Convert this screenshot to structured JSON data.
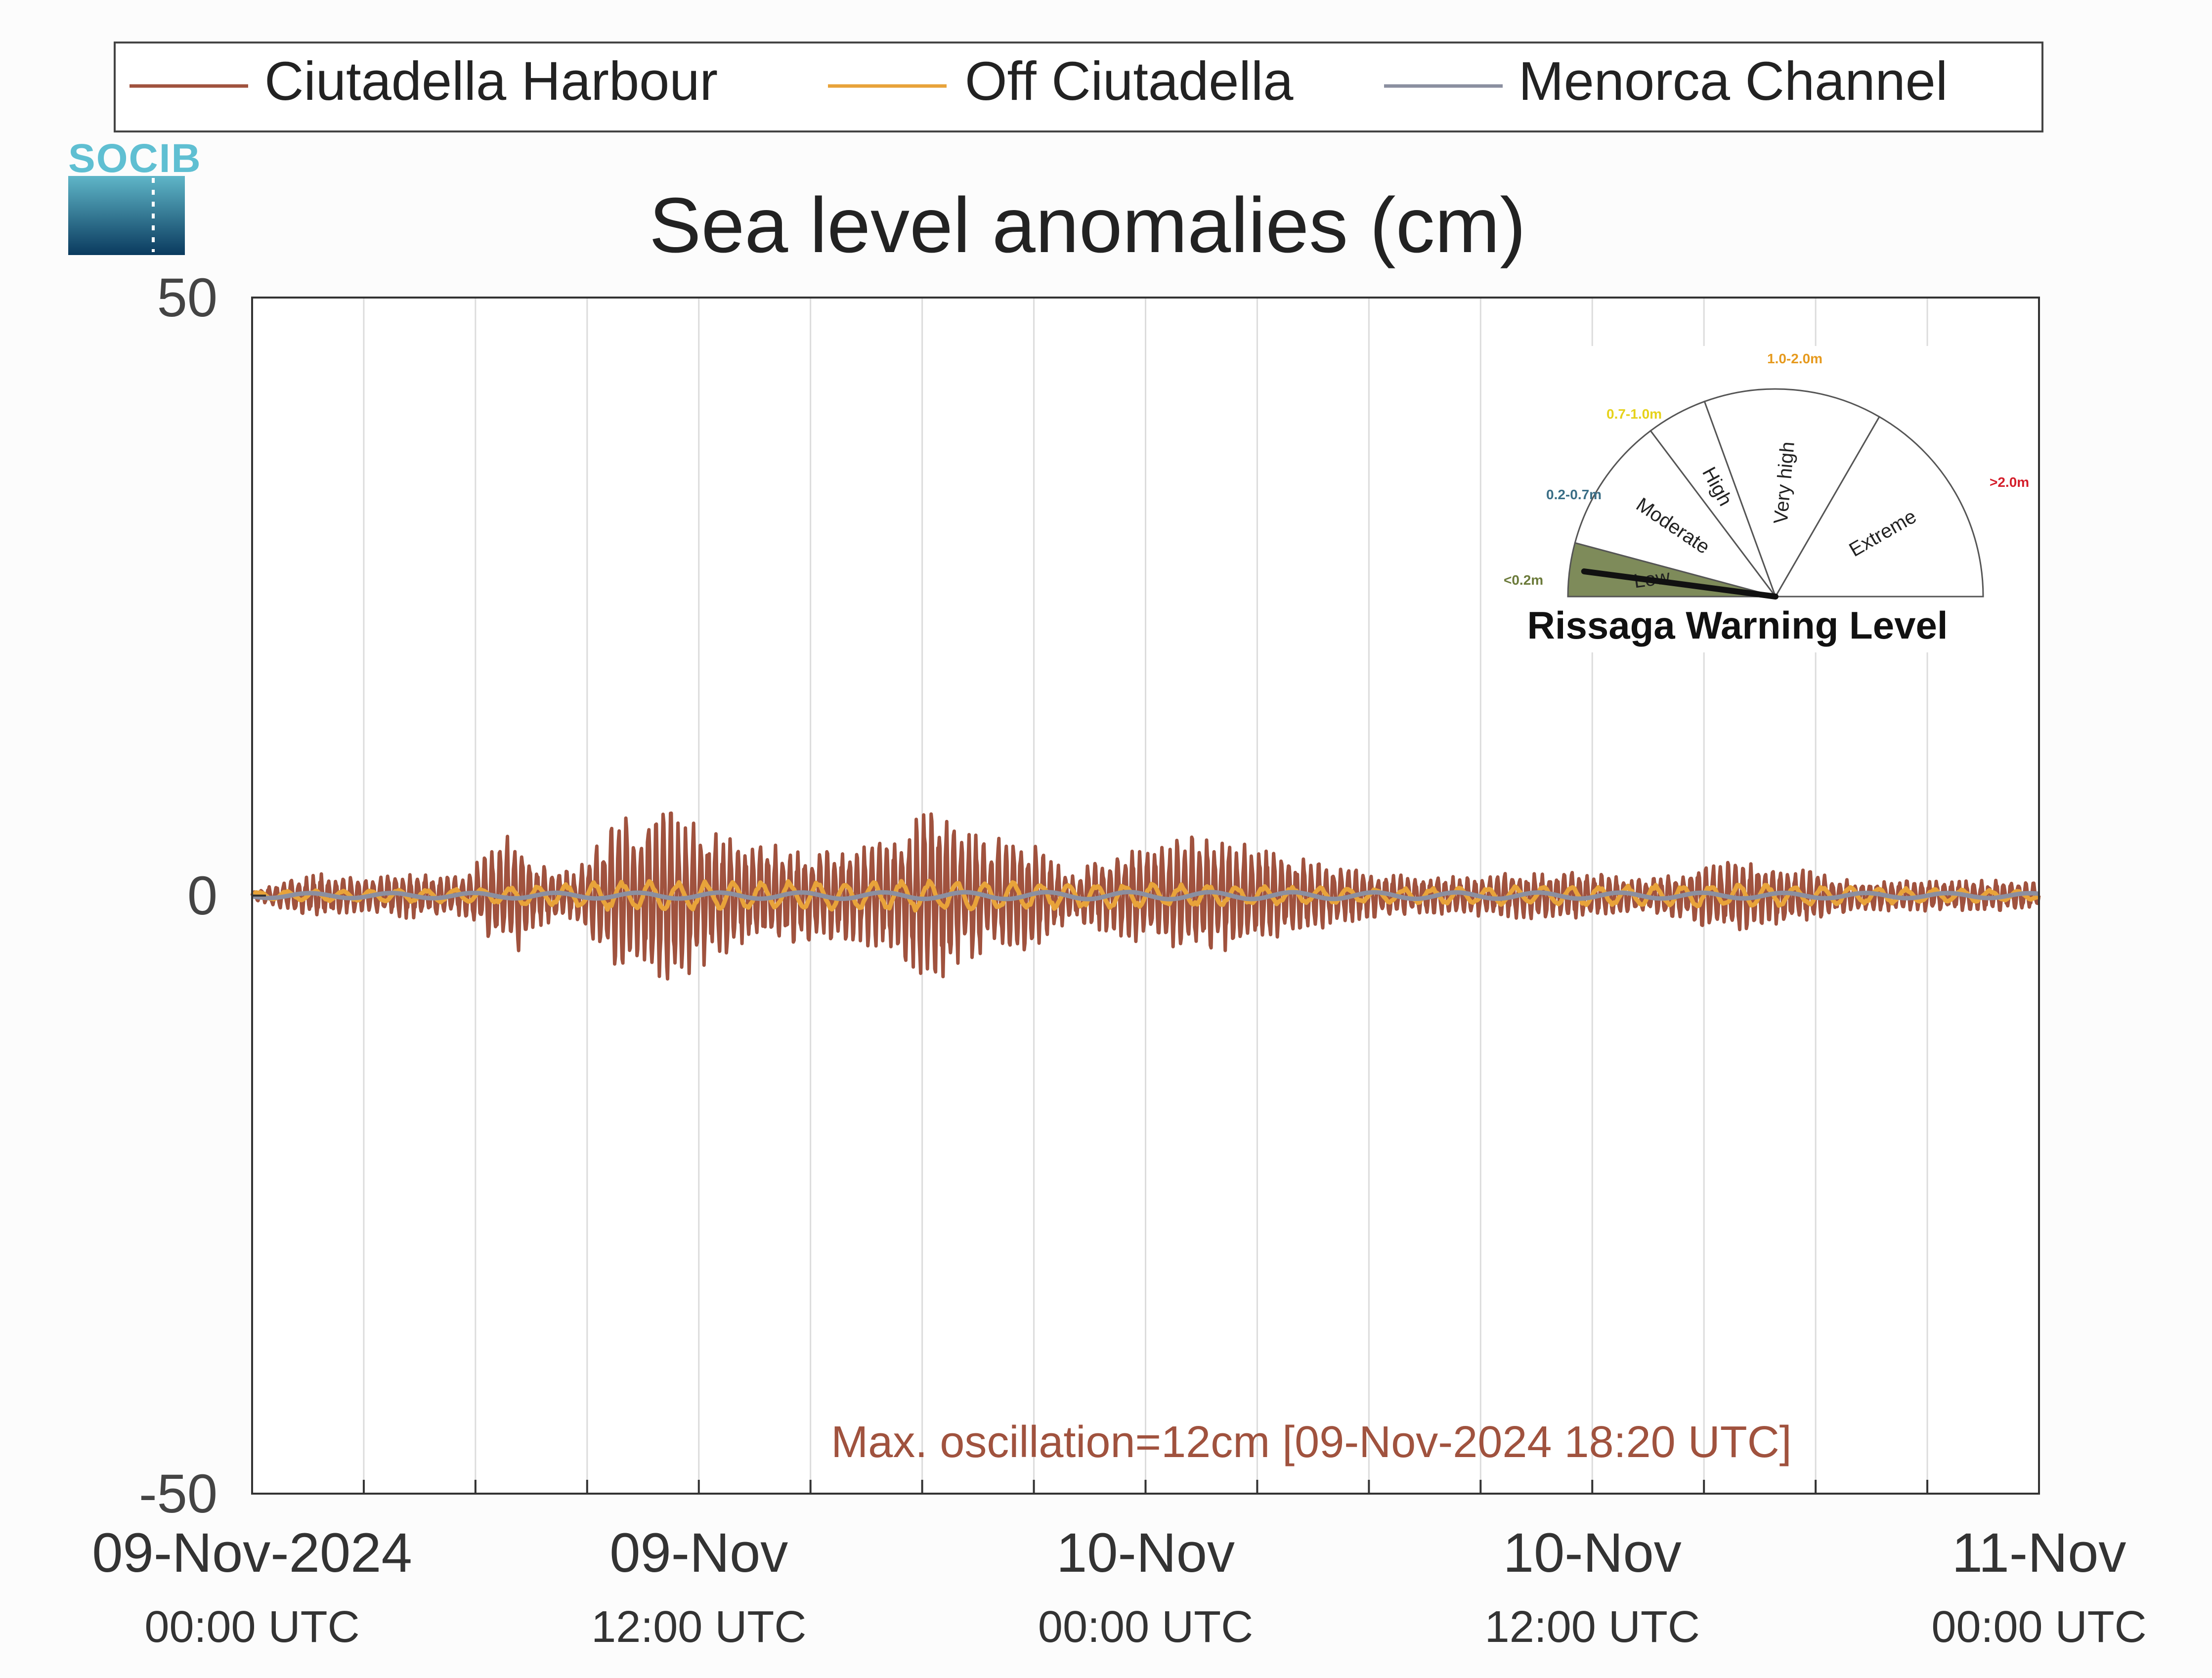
{
  "logo_text": "SOCIB",
  "chart_data": {
    "type": "line",
    "title": "Sea level anomalies (cm)",
    "xlabel": "",
    "ylabel": "",
    "ylim": [
      -50,
      50
    ],
    "yticks": [
      -50,
      0,
      50
    ],
    "x_range": [
      "2024-11-09 00:00",
      "2024-11-11 00:00"
    ],
    "x_minor_grid_hours": 3,
    "grid": "vertical",
    "legend": {
      "position": "top",
      "entries": [
        "Ciutadella Harbour",
        "Off Ciutadella",
        "Menorca Channel"
      ]
    },
    "xticks": [
      {
        "x": "2024-11-09 00:00",
        "line1": "09-Nov-2024",
        "line2": "00:00 UTC"
      },
      {
        "x": "2024-11-09 12:00",
        "line1": "09-Nov",
        "line2": "12:00 UTC"
      },
      {
        "x": "2024-11-10 00:00",
        "line1": "10-Nov",
        "line2": "00:00 UTC"
      },
      {
        "x": "2024-11-10 12:00",
        "line1": "10-Nov",
        "line2": "12:00 UTC"
      },
      {
        "x": "2024-11-11 00:00",
        "line1": "11-Nov",
        "line2": "00:00 UTC"
      }
    ],
    "series": [
      {
        "name": "Ciutadella Harbour",
        "color": "#a0523e",
        "style": "high-frequency oscillation; envelope = amplitude (cm) at given time",
        "envelope": [
          {
            "t": "2024-11-09 00:00",
            "amp": 0.3
          },
          {
            "t": "2024-11-09 01:00",
            "amp": 1.0
          },
          {
            "t": "2024-11-09 02:00",
            "amp": 1.5
          },
          {
            "t": "2024-11-09 03:00",
            "amp": 1.0
          },
          {
            "t": "2024-11-09 04:00",
            "amp": 1.5
          },
          {
            "t": "2024-11-09 05:30",
            "amp": 1.3
          },
          {
            "t": "2024-11-09 06:30",
            "amp": 3.0
          },
          {
            "t": "2024-11-09 07:00",
            "amp": 4.5
          },
          {
            "t": "2024-11-09 07:40",
            "amp": 2.0
          },
          {
            "t": "2024-11-09 08:40",
            "amp": 1.5
          },
          {
            "t": "2024-11-09 09:40",
            "amp": 4.5
          },
          {
            "t": "2024-11-09 10:40",
            "amp": 6.0
          },
          {
            "t": "2024-11-09 12:00",
            "amp": 5.0
          },
          {
            "t": "2024-11-09 13:00",
            "amp": 3.5
          },
          {
            "t": "2024-11-09 14:00",
            "amp": 3.3
          },
          {
            "t": "2024-11-09 15:00",
            "amp": 3.0
          },
          {
            "t": "2024-11-09 16:00",
            "amp": 3.0
          },
          {
            "t": "2024-11-09 17:00",
            "amp": 3.5
          },
          {
            "t": "2024-11-09 18:20",
            "amp": 6.0
          },
          {
            "t": "2024-11-09 19:30",
            "amp": 4.0
          },
          {
            "t": "2024-11-09 21:00",
            "amp": 3.5
          },
          {
            "t": "2024-11-09 22:00",
            "amp": 1.5
          },
          {
            "t": "2024-11-09 23:00",
            "amp": 2.5
          },
          {
            "t": "2024-11-10 01:00",
            "amp": 4.0
          },
          {
            "t": "2024-11-10 02:30",
            "amp": 3.5
          },
          {
            "t": "2024-11-10 04:00",
            "amp": 2.5
          },
          {
            "t": "2024-11-10 06:00",
            "amp": 1.5
          },
          {
            "t": "2024-11-10 08:00",
            "amp": 1.2
          },
          {
            "t": "2024-11-10 10:00",
            "amp": 1.5
          },
          {
            "t": "2024-11-10 12:00",
            "amp": 1.5
          },
          {
            "t": "2024-11-10 13:30",
            "amp": 1.0
          },
          {
            "t": "2024-11-10 15:00",
            "amp": 2.0
          },
          {
            "t": "2024-11-10 16:00",
            "amp": 2.3
          },
          {
            "t": "2024-11-10 17:30",
            "amp": 1.8
          },
          {
            "t": "2024-11-10 19:00",
            "amp": 1.0
          },
          {
            "t": "2024-11-10 21:00",
            "amp": 1.0
          },
          {
            "t": "2024-11-10 23:00",
            "amp": 1.0
          },
          {
            "t": "2024-11-11 00:00",
            "amp": 1.0
          }
        ]
      },
      {
        "name": "Off Ciutadella",
        "color": "#e8a33a",
        "style": "oscillation",
        "envelope": [
          {
            "t": "2024-11-09 00:00",
            "amp": 0.3
          },
          {
            "t": "2024-11-09 06:00",
            "amp": 0.5
          },
          {
            "t": "2024-11-09 10:00",
            "amp": 1.0
          },
          {
            "t": "2024-11-09 14:00",
            "amp": 1.0
          },
          {
            "t": "2024-11-09 20:00",
            "amp": 1.0
          },
          {
            "t": "2024-11-10 00:00",
            "amp": 0.8
          },
          {
            "t": "2024-11-10 06:00",
            "amp": 0.5
          },
          {
            "t": "2024-11-10 16:00",
            "amp": 0.8
          },
          {
            "t": "2024-11-11 00:00",
            "amp": 0.3
          }
        ]
      },
      {
        "name": "Menorca Channel",
        "color": "#8b8fa0",
        "style": "near-constant",
        "envelope": [
          {
            "t": "2024-11-09 00:00",
            "amp": 0.2
          },
          {
            "t": "2024-11-10 00:00",
            "amp": 0.3
          },
          {
            "t": "2024-11-11 00:00",
            "amp": 0.2
          }
        ]
      }
    ],
    "annotation": {
      "text": "Max. oscillation=12cm [09-Nov-2024 18:20 UTC]",
      "color": "#a0523e"
    }
  },
  "gauge": {
    "title": "Rissaga Warning Level",
    "current_level": "Low",
    "sectors": [
      {
        "label": "Low",
        "range": "<0.2m",
        "range_color": "#6b7a3a",
        "fill": "#7e8b5a",
        "active": true
      },
      {
        "label": "Moderate",
        "range": "0.2-0.7m",
        "range_color": "#3a6e86",
        "fill": "#ffffff",
        "active": false
      },
      {
        "label": "High",
        "range": "0.7-1.0m",
        "range_color": "#e6d21a",
        "fill": "#ffffff",
        "active": false
      },
      {
        "label": "Very high",
        "range": "1.0-2.0m",
        "range_color": "#e69a1e",
        "fill": "#ffffff",
        "active": false
      },
      {
        "label": "Extreme",
        "range": ">2.0m",
        "range_color": "#d41e2a",
        "fill": "#ffffff",
        "active": false
      }
    ]
  }
}
